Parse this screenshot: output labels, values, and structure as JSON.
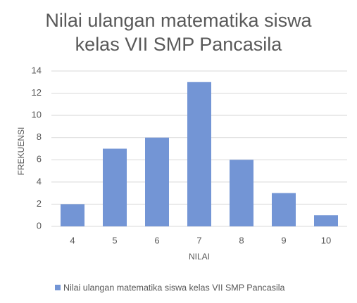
{
  "chart_data": {
    "type": "bar",
    "title": "Nilai ulangan matematika siswa kelas VII SMP Pancasila",
    "x_label": "NILAI",
    "y_label": "FREKUENSI",
    "categories": [
      "4",
      "5",
      "6",
      "7",
      "8",
      "9",
      "10"
    ],
    "series": [
      {
        "name": "Nilai ulangan matematika siswa kelas VII SMP Pancasila",
        "color": "#7395d5",
        "values": [
          2,
          7,
          8,
          13,
          6,
          3,
          1
        ]
      }
    ],
    "ylim": [
      0,
      14
    ],
    "yticks": [
      0,
      2,
      4,
      6,
      8,
      10,
      12,
      14
    ],
    "grid": true,
    "legend": "bottom"
  }
}
